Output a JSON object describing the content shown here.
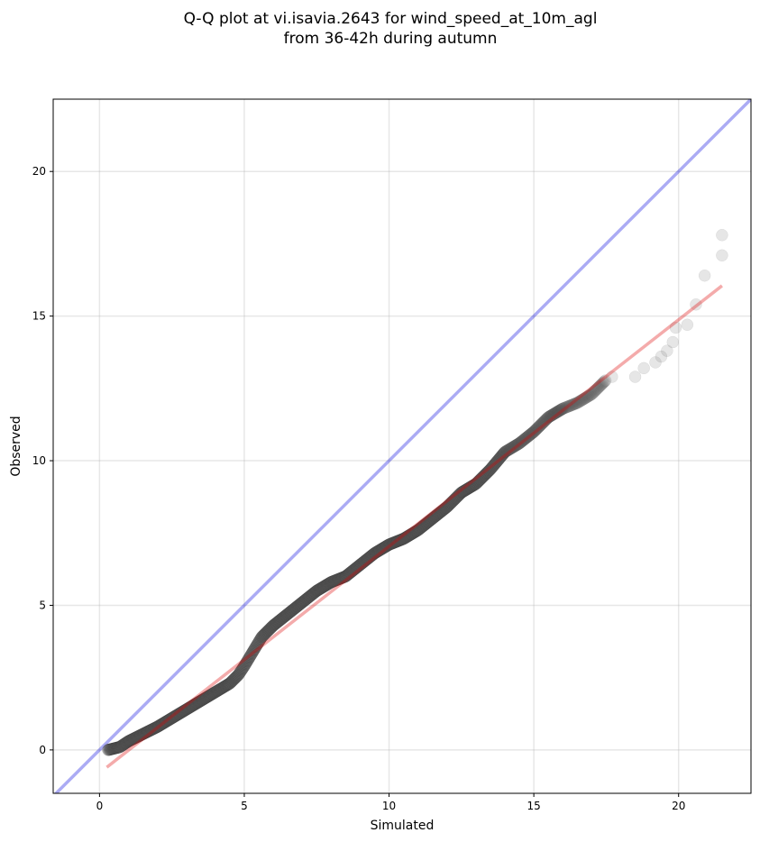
{
  "chart_data": {
    "type": "scatter",
    "title_line1": "Q-Q plot at vi.isavia.2643 for wind_speed_at_10m_agl",
    "title_line2": "from 36-42h during autumn",
    "xlabel": "Simulated",
    "ylabel": "Observed",
    "xlim": [
      -1.6,
      22.5
    ],
    "ylim": [
      -1.5,
      22.5
    ],
    "xticks": [
      0,
      5,
      10,
      15,
      20
    ],
    "yticks": [
      0,
      5,
      10,
      15,
      20
    ],
    "grid": true,
    "legend": "none",
    "identity_line": {
      "color": "#0000dd",
      "opacity": 0.33
    },
    "fit_line": {
      "x": [
        0.25,
        21.5
      ],
      "y": [
        -0.6,
        16.05
      ],
      "color": "#dd0000",
      "opacity": 0.33
    },
    "quantile_path": [
      [
        0.3,
        0.0
      ],
      [
        0.7,
        0.1
      ],
      [
        1.0,
        0.3
      ],
      [
        1.5,
        0.55
      ],
      [
        2.0,
        0.8
      ],
      [
        2.5,
        1.1
      ],
      [
        3.0,
        1.4
      ],
      [
        3.5,
        1.7
      ],
      [
        4.0,
        2.0
      ],
      [
        4.5,
        2.3
      ],
      [
        4.8,
        2.6
      ],
      [
        5.0,
        2.9
      ],
      [
        5.3,
        3.4
      ],
      [
        5.6,
        3.9
      ],
      [
        6.0,
        4.3
      ],
      [
        6.5,
        4.7
      ],
      [
        7.0,
        5.1
      ],
      [
        7.5,
        5.5
      ],
      [
        8.0,
        5.8
      ],
      [
        8.5,
        6.0
      ],
      [
        9.0,
        6.4
      ],
      [
        9.5,
        6.8
      ],
      [
        10.0,
        7.1
      ],
      [
        10.5,
        7.3
      ],
      [
        11.0,
        7.6
      ],
      [
        11.5,
        8.0
      ],
      [
        12.0,
        8.4
      ],
      [
        12.5,
        8.9
      ],
      [
        13.0,
        9.2
      ],
      [
        13.5,
        9.7
      ],
      [
        14.0,
        10.3
      ],
      [
        14.5,
        10.6
      ],
      [
        15.0,
        11.0
      ],
      [
        15.5,
        11.5
      ],
      [
        16.0,
        11.8
      ],
      [
        16.5,
        12.0
      ],
      [
        17.0,
        12.3
      ],
      [
        17.5,
        12.8
      ]
    ],
    "tail_points": [
      [
        17.7,
        12.9
      ],
      [
        18.5,
        12.9
      ],
      [
        18.8,
        13.2
      ],
      [
        19.2,
        13.4
      ],
      [
        19.4,
        13.6
      ],
      [
        19.6,
        13.8
      ],
      [
        19.8,
        14.1
      ],
      [
        19.9,
        14.6
      ],
      [
        20.3,
        14.7
      ],
      [
        20.6,
        15.4
      ],
      [
        20.9,
        16.4
      ],
      [
        21.5,
        17.1
      ],
      [
        21.5,
        17.8
      ]
    ]
  }
}
